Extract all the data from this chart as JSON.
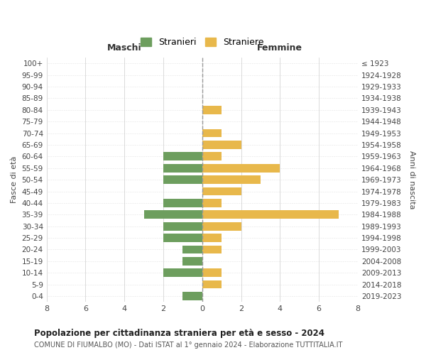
{
  "age_groups": [
    "0-4",
    "5-9",
    "10-14",
    "15-19",
    "20-24",
    "25-29",
    "30-34",
    "35-39",
    "40-44",
    "45-49",
    "50-54",
    "55-59",
    "60-64",
    "65-69",
    "70-74",
    "75-79",
    "80-84",
    "85-89",
    "90-94",
    "95-99",
    "100+"
  ],
  "birth_years": [
    "2019-2023",
    "2014-2018",
    "2009-2013",
    "2004-2008",
    "1999-2003",
    "1994-1998",
    "1989-1993",
    "1984-1988",
    "1979-1983",
    "1974-1978",
    "1969-1973",
    "1964-1968",
    "1959-1963",
    "1954-1958",
    "1949-1953",
    "1944-1948",
    "1939-1943",
    "1934-1938",
    "1929-1933",
    "1924-1928",
    "≤ 1923"
  ],
  "males": [
    1,
    0,
    2,
    1,
    1,
    2,
    2,
    3,
    2,
    0,
    2,
    2,
    2,
    0,
    0,
    0,
    0,
    0,
    0,
    0,
    0
  ],
  "females": [
    0,
    1,
    1,
    0,
    1,
    1,
    2,
    7,
    1,
    2,
    3,
    4,
    1,
    2,
    1,
    0,
    1,
    0,
    0,
    0,
    0
  ],
  "male_color": "#6d9e5e",
  "female_color": "#e8b84b",
  "background_color": "#ffffff",
  "grid_color": "#cccccc",
  "title": "Popolazione per cittadinanza straniera per età e sesso - 2024",
  "subtitle": "COMUNE DI FIUMALBO (MO) - Dati ISTAT al 1° gennaio 2024 - Elaborazione TUTTITALIA.IT",
  "xlabel_left": "Maschi",
  "xlabel_right": "Femmine",
  "ylabel_left": "Fasce di età",
  "ylabel_right": "Anni di nascita",
  "legend_male": "Stranieri",
  "legend_female": "Straniere",
  "xlim": 8,
  "bar_height": 0.72
}
